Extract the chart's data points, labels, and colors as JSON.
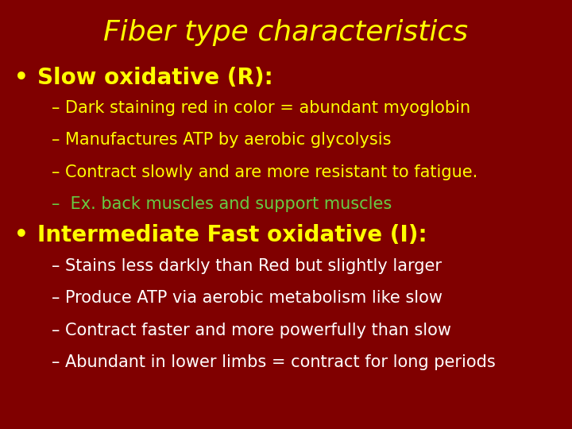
{
  "title": "Fiber type characteristics",
  "title_color": "#FFFF00",
  "title_fontsize": 26,
  "title_fontweight": "normal",
  "background_color": "#800000",
  "bullet1_text": "Slow oxidative (R):",
  "bullet1_color": "#FFFF00",
  "bullet1_fontsize": 20,
  "bullet1_items": [
    "– Dark staining red in color = abundant myoglobin",
    "– Manufactures ATP by aerobic glycolysis",
    "– Contract slowly and are more resistant to fatigue.",
    "–  Ex. back muscles and support muscles"
  ],
  "bullet1_item_colors": [
    "#FFFF00",
    "#FFFF00",
    "#FFFF00",
    "#66CC44"
  ],
  "bullet1_item_fontsize": 15,
  "bullet2_text": "Intermediate Fast oxidative (I):",
  "bullet2_color": "#FFFF00",
  "bullet2_fontsize": 20,
  "bullet2_items": [
    "– Stains less darkly than Red but slightly larger",
    "– Produce ATP via aerobic metabolism like slow",
    "– Contract faster and more powerfully than slow",
    "– Abundant in lower limbs = contract for long periods"
  ],
  "bullet2_item_colors": [
    "#FFFFFF",
    "#FFFFFF",
    "#FFFFFF",
    "#FFFFFF"
  ],
  "bullet2_item_fontsize": 15,
  "bullet_color": "#FFFF00",
  "bullet_fontsize": 20,
  "fig_width": 7.2,
  "fig_height": 5.4,
  "dpi": 100
}
